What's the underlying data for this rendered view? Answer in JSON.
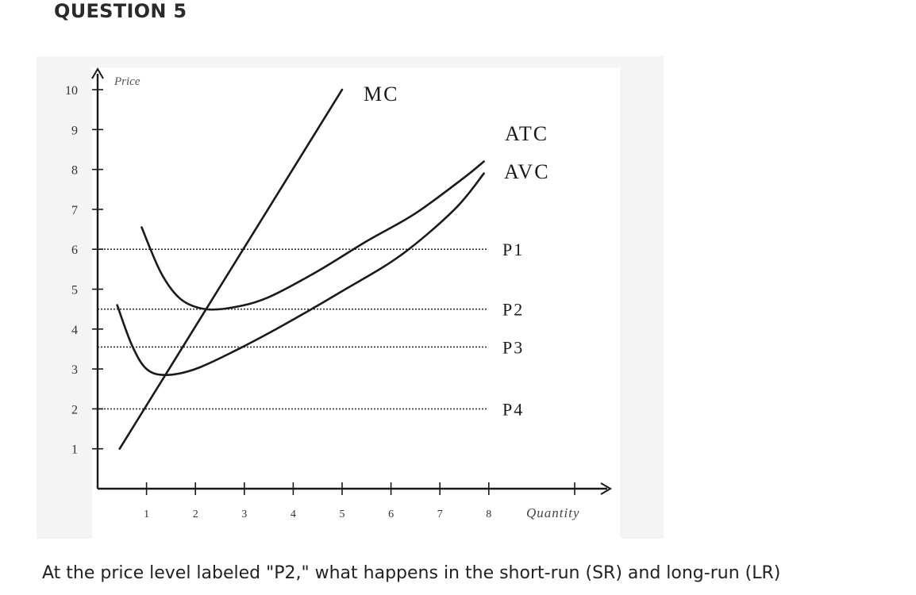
{
  "question": {
    "heading": "QUESTION 5",
    "text": "At the price level labeled \"P2,\" what happens in the short-run (SR) and long-run (LR)"
  },
  "chart_data": {
    "type": "line",
    "title": "",
    "xlabel": "Quantity",
    "ylabel": "Price",
    "xlim": [
      0,
      10
    ],
    "ylim": [
      0,
      10
    ],
    "x_ticks": [
      1,
      2,
      3,
      4,
      5,
      6,
      7,
      8
    ],
    "x_tick_labels": [
      "1",
      "2",
      "3",
      "4",
      "5",
      "6",
      "7",
      "8"
    ],
    "y_ticks": [
      1,
      2,
      3,
      4,
      5,
      6,
      7,
      8,
      9,
      10
    ],
    "y_tick_labels": [
      "1",
      "2",
      "3",
      "4",
      "5",
      "6",
      "7",
      "8",
      "9",
      "10"
    ],
    "grid": false,
    "series": [
      {
        "name": "MC",
        "x": [
          0.45,
          5.0
        ],
        "y": [
          1.0,
          10.0
        ]
      },
      {
        "name": "ATC",
        "x": [
          0.9,
          1.3,
          1.7,
          2.2,
          2.8,
          3.5,
          4.5,
          5.5,
          6.5,
          7.5,
          7.9
        ],
        "y": [
          6.55,
          5.4,
          4.75,
          4.5,
          4.55,
          4.8,
          5.45,
          6.2,
          6.9,
          7.8,
          8.2
        ]
      },
      {
        "name": "AVC",
        "x": [
          0.4,
          0.7,
          1.0,
          1.4,
          2.0,
          2.8,
          3.8,
          5.0,
          6.2,
          7.3,
          7.9
        ],
        "y": [
          4.6,
          3.6,
          3.0,
          2.85,
          3.0,
          3.45,
          4.1,
          4.95,
          5.85,
          7.0,
          7.9
        ]
      }
    ],
    "price_levels": [
      {
        "name": "P1",
        "y": 6.0
      },
      {
        "name": "P2",
        "y": 4.5
      },
      {
        "name": "P3",
        "y": 3.55
      },
      {
        "name": "P4",
        "y": 2.0
      }
    ],
    "colors": {
      "panel": "#f4f4f4",
      "plot": "#ffffff",
      "ink": "#1a1a1a"
    }
  }
}
